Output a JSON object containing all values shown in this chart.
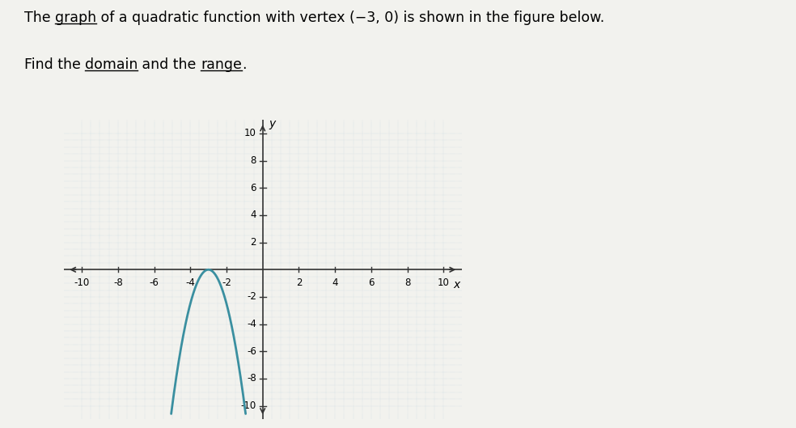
{
  "line1_parts": [
    [
      "The ",
      false
    ],
    [
      "graph",
      true
    ],
    [
      " of a quadratic function with vertex (−3, 0) is shown in the figure below.",
      false
    ]
  ],
  "line2_parts": [
    [
      "Find the ",
      false
    ],
    [
      "domain",
      true
    ],
    [
      " and the ",
      false
    ],
    [
      "range",
      true
    ],
    [
      ".",
      false
    ]
  ],
  "vertex": [
    -3,
    0
  ],
  "a_coeff": -2.5,
  "xlim": [
    -11,
    11
  ],
  "ylim": [
    -11,
    11
  ],
  "xticks": [
    -10,
    -8,
    -6,
    -4,
    -2,
    2,
    4,
    6,
    8,
    10
  ],
  "yticks": [
    -10,
    -8,
    -6,
    -4,
    -2,
    2,
    4,
    6,
    8,
    10
  ],
  "curve_color": "#3a8fa0",
  "curve_linewidth": 2.0,
  "grid_dot_color": "#b8cdd8",
  "axis_color": "#333333",
  "figure_bg": "#f2f2ee",
  "box_bg": "#f5f5f2",
  "tick_label_fontsize": 8.5,
  "axis_label_fontsize": 10,
  "xlabel": "x",
  "ylabel": "y",
  "text_fontsize": 12.5
}
